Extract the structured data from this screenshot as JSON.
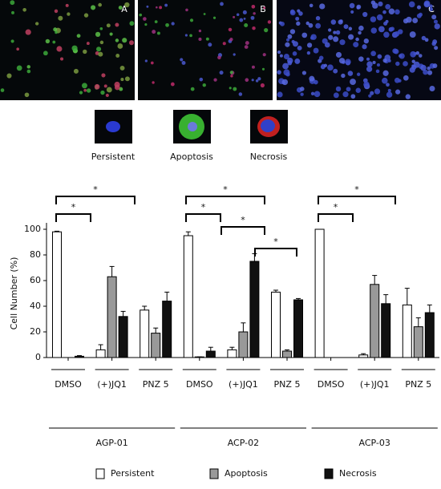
{
  "panels": {
    "labels": [
      "A",
      "B",
      "C"
    ],
    "examples": [
      "Persistent",
      "Apoptosis",
      "Necrosis"
    ]
  },
  "chart_data": {
    "type": "bar",
    "y_label": "Cell Number (%)",
    "categories": [
      "DMSO",
      "(+)JQ1",
      "PNZ 5",
      "DMSO",
      "(+)JQ1",
      "PNZ 5",
      "DMSO",
      "(+)JQ1",
      "PNZ 5"
    ],
    "groups": [
      "AGP-01",
      "ACP-02",
      "ACP-03"
    ],
    "series": [
      {
        "name": "Persistent",
        "color": "#ffffff",
        "values": [
          98,
          6,
          37,
          95,
          6,
          51,
          100,
          2,
          41
        ],
        "errors": [
          0.5,
          4,
          3,
          3,
          2,
          1.5,
          0,
          1,
          13
        ]
      },
      {
        "name": "Apoptosis",
        "color": "#999999",
        "values": [
          0,
          63,
          19,
          0.5,
          20,
          5,
          0,
          57,
          24
        ],
        "errors": [
          0,
          8,
          4,
          0,
          7,
          1,
          0,
          7,
          7
        ]
      },
      {
        "name": "Necrosis",
        "color": "#111111",
        "values": [
          1,
          32,
          44,
          5,
          75,
          45,
          0,
          42,
          35
        ],
        "errors": [
          0.5,
          4,
          7,
          3,
          6,
          1,
          0,
          7,
          6
        ]
      }
    ],
    "significance": [
      "*",
      "*",
      "*",
      "*",
      "*",
      "*",
      "*",
      "*"
    ],
    "ylim": [
      0,
      100
    ],
    "yticks": [
      0,
      20,
      40,
      60,
      80,
      100
    ],
    "legend": "bottom"
  }
}
